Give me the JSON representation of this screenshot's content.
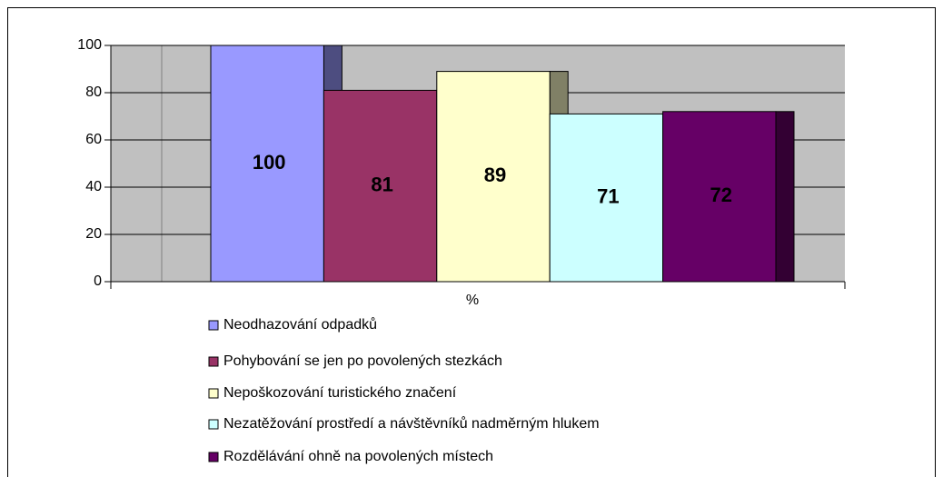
{
  "chart_data": {
    "type": "bar",
    "categories": [
      "%"
    ],
    "series": [
      {
        "name": "Neodhazování odpadků",
        "color": "#9999ff",
        "values": [
          100
        ]
      },
      {
        "name": "Pohybování se jen po povolených stezkách",
        "color": "#993366",
        "values": [
          81
        ]
      },
      {
        "name": "Nepoškozování turistického značení",
        "color": "#ffffcc",
        "values": [
          89
        ]
      },
      {
        "name": "Nezatěžování prostředí a návštěvníků nadměrným hlukem",
        "color": "#ccffff",
        "values": [
          71
        ]
      },
      {
        "name": "Rozdělávání ohně na povolených místech",
        "color": "#660066",
        "values": [
          72
        ]
      }
    ],
    "ylim": [
      0,
      100
    ],
    "yticks": [
      0,
      20,
      40,
      60,
      80,
      100
    ],
    "grid": true,
    "legend": "bottom"
  }
}
